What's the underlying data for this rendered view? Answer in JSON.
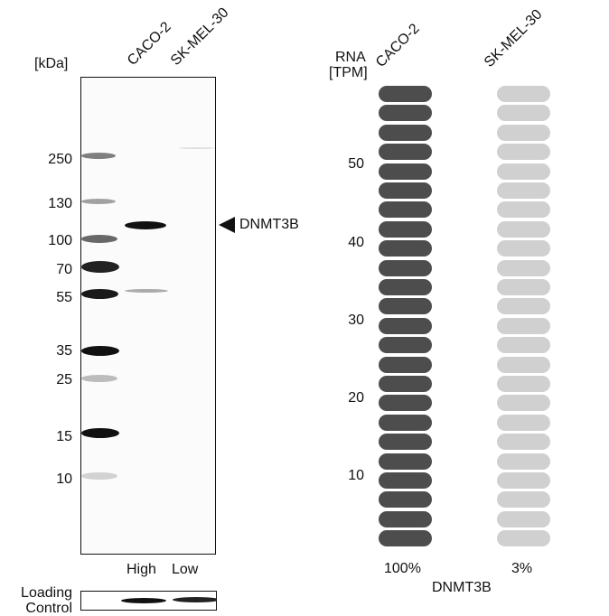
{
  "western_blot": {
    "unit_label": "[kDa]",
    "lanes": [
      "CACO-2",
      "SK-MEL-30"
    ],
    "marker_labels": [
      "250",
      "130",
      "100",
      "70",
      "55",
      "35",
      "25",
      "15",
      "10"
    ],
    "target_label": "DNMT3B",
    "lane_level_labels": [
      "High",
      "Low"
    ],
    "loading_control_label_line1": "Loading",
    "loading_control_label_line2": "Control"
  },
  "rna_panel": {
    "axis_label_line1": "RNA",
    "axis_label_line2": "[TPM]",
    "columns": [
      "CACO-2",
      "SK-MEL-30"
    ],
    "tick_labels": [
      "50",
      "40",
      "30",
      "20",
      "10"
    ],
    "percent_labels": [
      "100%",
      "3%"
    ],
    "gene_label": "DNMT3B",
    "colors": {
      "high": "#4d4d4d",
      "low": "#d0d0d0"
    }
  },
  "chart_data": {
    "type": "bar",
    "title": "DNMT3B",
    "ylabel": "RNA [TPM]",
    "categories": [
      "CACO-2",
      "SK-MEL-30"
    ],
    "values_percent": [
      100,
      3
    ],
    "yticks": [
      10,
      20,
      30,
      40,
      50
    ],
    "ylim": [
      0,
      60
    ],
    "segments_per_column": 24
  }
}
